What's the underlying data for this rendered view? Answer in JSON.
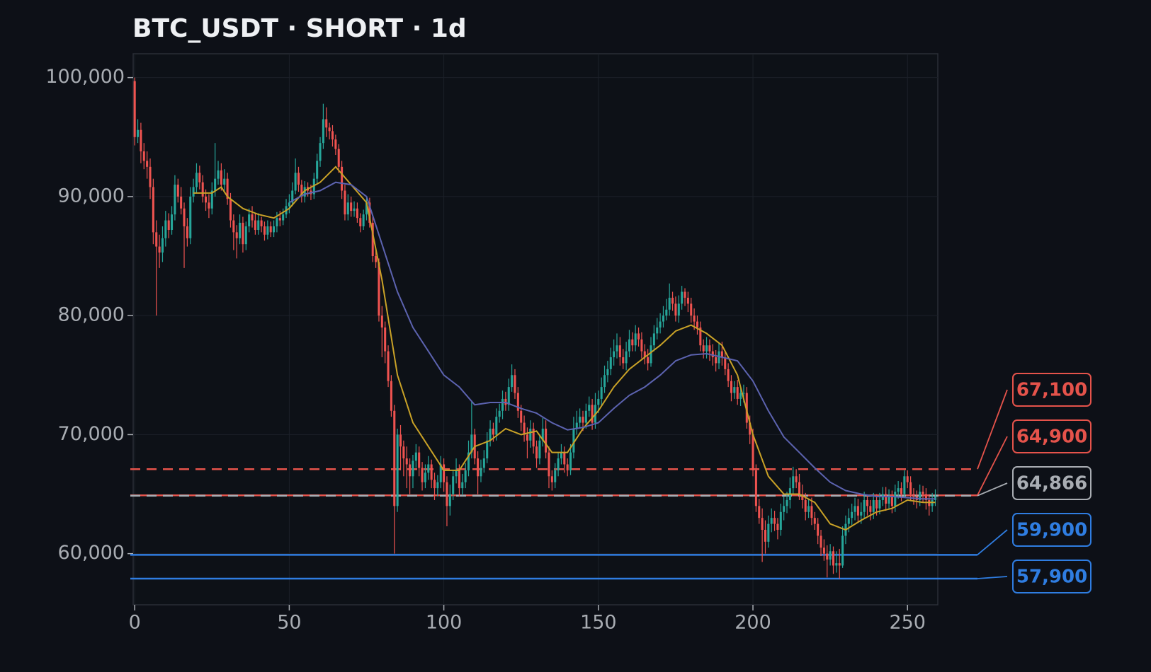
{
  "chart_data": {
    "type": "candlestick",
    "title": "BTC_USDT · SHORT · 1d",
    "up_color": "#26a69a",
    "down_color": "#ef5350",
    "grid": true,
    "xlim": [
      -0.5,
      259.8
    ],
    "ylim": [
      55700,
      102000
    ],
    "xticks": [
      0,
      50,
      100,
      150,
      200,
      250
    ],
    "yticks": [
      {
        "value": 60000,
        "label": "60,000"
      },
      {
        "value": 70000,
        "label": "70,000"
      },
      {
        "value": 80000,
        "label": "80,000"
      },
      {
        "value": 90000,
        "label": "90,000"
      },
      {
        "value": 100000,
        "label": "100,000"
      }
    ],
    "open": [
      99700,
      95000,
      95600,
      93800,
      93000,
      92500,
      90800,
      87000,
      85800,
      85300,
      86500,
      88000,
      87200,
      88500,
      91000,
      90000,
      89000,
      87500,
      86500,
      90000,
      90800,
      92000,
      91200,
      90000,
      89500,
      89000,
      90500,
      91500,
      92200,
      91000,
      91500,
      89800,
      88000,
      87000,
      86500,
      87800,
      86000,
      87500,
      88500,
      88000,
      87200,
      88000,
      87500,
      86800,
      87500,
      87000,
      87500,
      88200,
      88000,
      88500,
      89200,
      89500,
      90500,
      92000,
      91000,
      90000,
      90800,
      90500,
      90200,
      91500,
      93000,
      94500,
      96500,
      95800,
      95500,
      94800,
      94000,
      92500,
      90500,
      88500,
      89500,
      88800,
      89000,
      88200,
      87500,
      88500,
      89500,
      87800,
      85000,
      84500,
      80000,
      79000,
      77000,
      74500,
      72000,
      64000,
      70000,
      69000,
      68000,
      67500,
      66500,
      67800,
      68500,
      67200,
      66000,
      66800,
      67500,
      66200,
      65500,
      66000,
      67500,
      66000,
      64000,
      65000,
      66500,
      67000,
      65500,
      66000,
      67000,
      68500,
      70000,
      68000,
      66500,
      67200,
      68000,
      69500,
      70500,
      70000,
      71500,
      72000,
      73000,
      72500,
      74000,
      75000,
      73500,
      72000,
      71000,
      70000,
      69500,
      70500,
      69000,
      68000,
      69500,
      70500,
      68500,
      66500,
      66000,
      67000,
      68000,
      68500,
      67500,
      67000,
      68500,
      70500,
      71000,
      71500,
      71000,
      72000,
      72500,
      71000,
      72500,
      73000,
      74000,
      75000,
      75500,
      76500,
      77000,
      77500,
      76500,
      76000,
      77000,
      78000,
      77500,
      78500,
      78000,
      77000,
      76500,
      76000,
      77500,
      78500,
      79000,
      79500,
      80000,
      80500,
      81500,
      81000,
      80000,
      81000,
      82000,
      81500,
      81000,
      80000,
      79500,
      79000,
      77500,
      77000,
      77500,
      77000,
      76500,
      76000,
      77000,
      76500,
      75500,
      74500,
      73500,
      74000,
      73000,
      73500,
      73500,
      71000,
      70000,
      67000,
      64000,
      63000,
      62000,
      61000,
      62500,
      63000,
      62500,
      62000,
      63500,
      64000,
      64500,
      65500,
      66500,
      66000,
      65000,
      64500,
      63500,
      64000,
      63000,
      62500,
      61500,
      60500,
      60000,
      59500,
      60200,
      59000,
      59200,
      59000,
      61500,
      62500,
      63000,
      63500,
      64000,
      63200,
      63500,
      64500,
      64000,
      63500,
      64500,
      63800,
      64500,
      65000,
      64200,
      64800,
      64000,
      65200,
      65500,
      65000,
      66500,
      66000,
      65000,
      64800,
      64500,
      65200,
      65000,
      64500,
      64000,
      64500
    ],
    "high": [
      100000,
      96500,
      96200,
      94500,
      93800,
      93200,
      91500,
      88000,
      86800,
      87500,
      88800,
      88600,
      89200,
      91800,
      91500,
      90800,
      89500,
      88200,
      90800,
      91500,
      92800,
      92600,
      91800,
      90600,
      90200,
      91200,
      94500,
      93000,
      92800,
      92300,
      92000,
      90300,
      88500,
      87600,
      88500,
      88300,
      87900,
      89000,
      89200,
      88600,
      88600,
      88300,
      87900,
      88000,
      87900,
      88000,
      88700,
      88800,
      89000,
      89800,
      90200,
      91200,
      93200,
      92500,
      91400,
      91300,
      91200,
      91000,
      92000,
      93600,
      95000,
      97800,
      97500,
      96200,
      96000,
      95200,
      94400,
      93000,
      91000,
      90200,
      90000,
      89600,
      89500,
      88600,
      88900,
      90000,
      89900,
      88300,
      85500,
      84800,
      80800,
      79500,
      77500,
      75000,
      72500,
      70500,
      70800,
      69500,
      69000,
      68000,
      68300,
      69200,
      69000,
      67700,
      67500,
      68200,
      67900,
      66800,
      66600,
      68200,
      68000,
      66500,
      65800,
      67000,
      68000,
      67500,
      66700,
      67600,
      69500,
      72800,
      70500,
      68600,
      67900,
      68700,
      70200,
      71200,
      71000,
      72200,
      72600,
      73700,
      73600,
      74700,
      75900,
      75500,
      74000,
      72500,
      71600,
      70600,
      71200,
      71000,
      69500,
      70000,
      71400,
      71200,
      69000,
      67000,
      67600,
      68500,
      69200,
      69000,
      68000,
      69200,
      71500,
      72000,
      72200,
      72000,
      72600,
      73200,
      73000,
      73500,
      73700,
      74800,
      75800,
      76200,
      77300,
      78000,
      78500,
      78200,
      77200,
      77800,
      78800,
      78600,
      79200,
      79000,
      78600,
      77600,
      77200,
      78200,
      79200,
      79800,
      80200,
      80800,
      81400,
      82700,
      82000,
      81600,
      81700,
      82500,
      82300,
      82000,
      81500,
      80600,
      80000,
      79500,
      78000,
      78200,
      78000,
      77600,
      77100,
      77700,
      77800,
      77000,
      76000,
      75000,
      74500,
      74600,
      74000,
      74200,
      74000,
      71600,
      70500,
      67500,
      64600,
      63800,
      62800,
      63200,
      63800,
      63600,
      63000,
      64200,
      64800,
      65200,
      66400,
      67300,
      67100,
      66700,
      65800,
      65100,
      64600,
      64700,
      63500,
      63000,
      62000,
      61200,
      60700,
      60800,
      60600,
      60200,
      60400,
      62300,
      63200,
      63800,
      64200,
      64700,
      64600,
      64300,
      65200,
      64900,
      64500,
      65100,
      65000,
      65100,
      65600,
      65600,
      65400,
      65300,
      65800,
      66100,
      66000,
      67000,
      67000,
      66500,
      65500,
      65300,
      65800,
      65700,
      65500,
      65000,
      65100,
      65400
    ],
    "low": [
      94300,
      94500,
      92800,
      92300,
      91500,
      89800,
      86000,
      80000,
      84000,
      84500,
      85800,
      86500,
      86800,
      88000,
      89500,
      88500,
      84000,
      85800,
      86000,
      89500,
      90300,
      90600,
      89500,
      88800,
      88200,
      88500,
      90000,
      91000,
      90500,
      90400,
      89300,
      87400,
      85500,
      84800,
      86000,
      85300,
      85500,
      87000,
      87400,
      86800,
      86800,
      87000,
      86300,
      86400,
      86600,
      86600,
      87000,
      87500,
      87600,
      88200,
      88600,
      89200,
      90200,
      90400,
      89500,
      89500,
      90000,
      89700,
      89800,
      91000,
      92500,
      94000,
      95000,
      94800,
      94200,
      93500,
      92000,
      89800,
      88000,
      88000,
      88300,
      88300,
      87800,
      87000,
      87200,
      88000,
      87400,
      84500,
      84000,
      79500,
      76500,
      76000,
      74000,
      71500,
      60000,
      63500,
      67000,
      66500,
      65500,
      65000,
      65500,
      67200,
      66500,
      65300,
      65500,
      66200,
      65500,
      64500,
      64800,
      65500,
      65200,
      62300,
      63200,
      64500,
      65900,
      64800,
      64900,
      65500,
      66500,
      68000,
      67500,
      65000,
      66000,
      66800,
      67600,
      69000,
      69400,
      69500,
      71000,
      71300,
      72000,
      72000,
      73600,
      73000,
      71400,
      70300,
      69400,
      68000,
      68900,
      68400,
      67200,
      67500,
      69000,
      68000,
      65500,
      65300,
      65500,
      66500,
      67500,
      66800,
      66500,
      66600,
      68000,
      70000,
      70500,
      70300,
      70500,
      71500,
      70400,
      70500,
      71800,
      72400,
      73500,
      74400,
      75000,
      75800,
      76400,
      75800,
      75500,
      75400,
      76500,
      77000,
      77000,
      77400,
      76400,
      75900,
      75400,
      75700,
      77000,
      78000,
      78500,
      79000,
      79600,
      80000,
      80400,
      79500,
      79400,
      80500,
      80800,
      80300,
      79400,
      78800,
      78400,
      77000,
      76400,
      76400,
      76200,
      75800,
      75300,
      75500,
      75800,
      75000,
      74000,
      72800,
      73000,
      72500,
      72400,
      72700,
      70500,
      69200,
      66500,
      63500,
      62500,
      59300,
      60000,
      60500,
      61800,
      61900,
      61200,
      61500,
      62800,
      63400,
      63800,
      65000,
      65500,
      64500,
      63800,
      62800,
      63000,
      62400,
      62000,
      60800,
      59800,
      59400,
      58000,
      59000,
      58300,
      58400,
      57900,
      58800,
      60800,
      61800,
      62400,
      62800,
      62600,
      62500,
      63000,
      63200,
      62800,
      62900,
      63200,
      63300,
      64000,
      63600,
      63700,
      63400,
      63500,
      64600,
      64400,
      64700,
      65500,
      64400,
      64100,
      63800,
      64000,
      64300,
      63700,
      63200,
      63500,
      64000
    ],
    "close": [
      95000,
      95600,
      93800,
      93000,
      92500,
      90800,
      87000,
      85800,
      85300,
      86500,
      88000,
      87200,
      88500,
      91000,
      90000,
      89000,
      87500,
      86500,
      90000,
      90800,
      92000,
      91200,
      90000,
      89500,
      89000,
      90500,
      91500,
      92200,
      91000,
      91500,
      89800,
      88000,
      87000,
      86500,
      87800,
      86000,
      87500,
      88500,
      88000,
      87200,
      88000,
      87500,
      86800,
      87500,
      87000,
      87500,
      88200,
      88000,
      88500,
      89200,
      89500,
      90500,
      92000,
      91000,
      90000,
      90800,
      90500,
      90200,
      91500,
      93000,
      94500,
      96500,
      95800,
      95500,
      94800,
      94000,
      92500,
      90500,
      88500,
      89500,
      88800,
      89000,
      88200,
      87500,
      88500,
      89500,
      87800,
      85000,
      84500,
      80000,
      79000,
      77000,
      74500,
      72000,
      64000,
      70000,
      69000,
      68000,
      67500,
      66500,
      67800,
      68500,
      67200,
      66000,
      66800,
      67500,
      66200,
      65500,
      66000,
      67500,
      66000,
      64000,
      65000,
      66500,
      67000,
      65500,
      66000,
      67000,
      68500,
      70000,
      68000,
      66500,
      67200,
      68000,
      69500,
      70500,
      70000,
      71500,
      72000,
      73000,
      72500,
      74000,
      75000,
      73500,
      72000,
      71000,
      70000,
      69500,
      70500,
      69000,
      68000,
      69500,
      70500,
      68500,
      66500,
      66000,
      67000,
      68000,
      68500,
      67500,
      67000,
      68500,
      70500,
      71000,
      71500,
      71000,
      72000,
      72500,
      71000,
      72500,
      73000,
      74000,
      75000,
      75500,
      76500,
      77000,
      77500,
      76500,
      76000,
      77000,
      78000,
      77500,
      78500,
      78000,
      77000,
      76500,
      76000,
      77500,
      78500,
      79000,
      79500,
      80000,
      80500,
      81500,
      81000,
      80000,
      81000,
      82000,
      81500,
      81000,
      80000,
      79500,
      79000,
      77500,
      77000,
      77500,
      77000,
      76500,
      76000,
      77000,
      76500,
      75500,
      74500,
      73500,
      74000,
      73000,
      73500,
      73500,
      71000,
      70000,
      67000,
      64000,
      63000,
      62000,
      61000,
      62500,
      63000,
      62500,
      62000,
      63500,
      64000,
      64500,
      65500,
      66500,
      66000,
      65000,
      64500,
      63500,
      64000,
      63000,
      62500,
      61500,
      60500,
      60000,
      59500,
      60200,
      59000,
      59200,
      59000,
      61500,
      62500,
      63000,
      63500,
      64000,
      63200,
      63500,
      64500,
      64000,
      63500,
      64500,
      63800,
      64500,
      65000,
      64200,
      64800,
      64000,
      65200,
      65500,
      65000,
      66500,
      66000,
      65000,
      64800,
      64500,
      65200,
      65000,
      64500,
      64000,
      64500,
      64800
    ],
    "lines": [
      {
        "color": "#c9a227",
        "x": [
          19,
          25,
          28,
          30,
          35,
          40,
          45,
          50,
          55,
          60,
          65,
          70,
          75,
          80,
          85,
          90,
          95,
          100,
          105,
          110,
          115,
          120,
          125,
          130,
          135,
          140,
          145,
          150,
          155,
          160,
          165,
          170,
          175,
          180,
          185,
          190,
          195,
          200,
          205,
          210,
          215,
          220,
          225,
          230,
          235,
          240,
          245,
          250,
          255,
          259
        ],
        "values": [
          90300,
          90300,
          90800,
          90000,
          89000,
          88500,
          88200,
          89000,
          90500,
          91200,
          92500,
          91000,
          89500,
          83000,
          75000,
          71000,
          69000,
          67000,
          67000,
          69000,
          69500,
          70500,
          70000,
          70300,
          68500,
          68500,
          70500,
          72000,
          74000,
          75500,
          76500,
          77500,
          78700,
          79200,
          78500,
          77500,
          75000,
          70000,
          66500,
          65000,
          65000,
          64300,
          62500,
          62000,
          62800,
          63500,
          63800,
          64500,
          64300,
          64300
        ]
      },
      {
        "color": "#5c63b0",
        "x": [
          50,
          55,
          60,
          65,
          70,
          75,
          80,
          85,
          90,
          95,
          100,
          105,
          110,
          115,
          120,
          125,
          130,
          135,
          140,
          145,
          150,
          155,
          160,
          165,
          170,
          175,
          180,
          185,
          190,
          195,
          200,
          205,
          210,
          215,
          220,
          225,
          230,
          235,
          240,
          245,
          250,
          255,
          259
        ],
        "values": [
          89500,
          90200,
          90500,
          91200,
          91000,
          90000,
          86000,
          82000,
          79000,
          77000,
          75000,
          74000,
          72500,
          72700,
          72700,
          72200,
          71800,
          71000,
          70400,
          70600,
          71000,
          72200,
          73300,
          74000,
          75000,
          76200,
          76700,
          76800,
          76500,
          76200,
          74500,
          72000,
          69800,
          68500,
          67200,
          66000,
          65300,
          65000,
          64800,
          64800,
          64700,
          64600,
          64600
        ]
      }
    ],
    "levels": [
      {
        "value": 67100,
        "label": "67,100",
        "color": "#e5534b",
        "style": "dashed"
      },
      {
        "value": 64900,
        "label": "64,900",
        "color": "#e5534b",
        "style": "solid"
      },
      {
        "value": 64866,
        "label": "64,866",
        "color": "#a9adb3",
        "style": "dashed"
      },
      {
        "value": 59900,
        "label": "59,900",
        "color": "#2f7de1",
        "style": "solid"
      },
      {
        "value": 57900,
        "label": "57,900",
        "color": "#2f7de1",
        "style": "solid"
      }
    ]
  }
}
